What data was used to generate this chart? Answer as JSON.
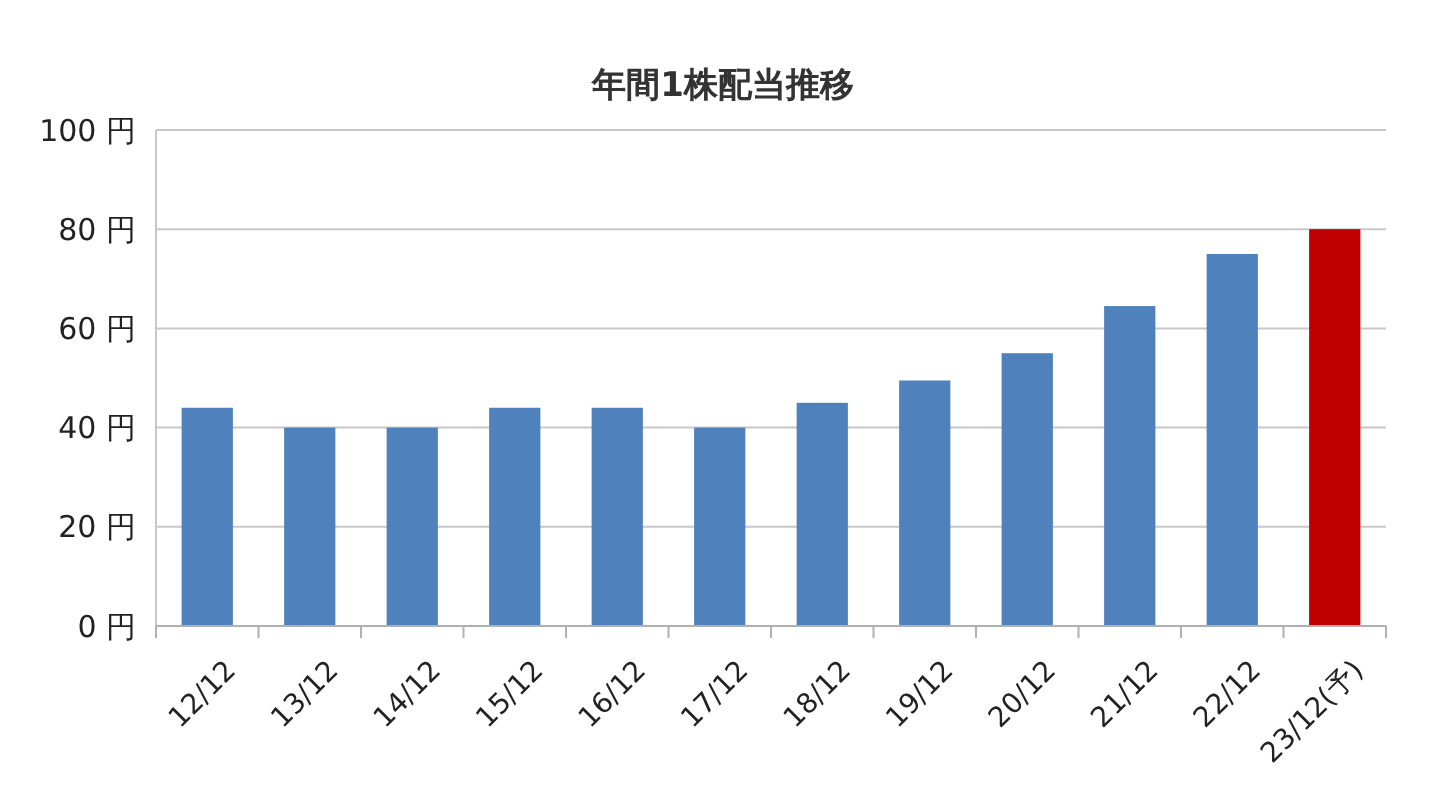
{
  "chart_data": {
    "type": "bar",
    "title": "年間1株配当推移",
    "categories": [
      "12/12",
      "13/12",
      "14/12",
      "15/12",
      "16/12",
      "17/12",
      "18/12",
      "19/12",
      "20/12",
      "21/12",
      "22/12",
      "23/12(予)"
    ],
    "values": [
      44,
      40,
      40,
      44,
      44,
      40,
      45,
      49.5,
      55,
      64.5,
      75,
      80
    ],
    "colors": [
      "#4f81bd",
      "#4f81bd",
      "#4f81bd",
      "#4f81bd",
      "#4f81bd",
      "#4f81bd",
      "#4f81bd",
      "#4f81bd",
      "#4f81bd",
      "#4f81bd",
      "#4f81bd",
      "#c00000"
    ],
    "ylim": [
      0,
      100
    ],
    "yticks": [
      {
        "value": 0,
        "label": "0 円"
      },
      {
        "value": 20,
        "label": "20 円"
      },
      {
        "value": 40,
        "label": "40 円"
      },
      {
        "value": 60,
        "label": "60 円"
      },
      {
        "value": 80,
        "label": "80 円"
      },
      {
        "value": 100,
        "label": "100 円"
      }
    ],
    "grid": "y"
  }
}
